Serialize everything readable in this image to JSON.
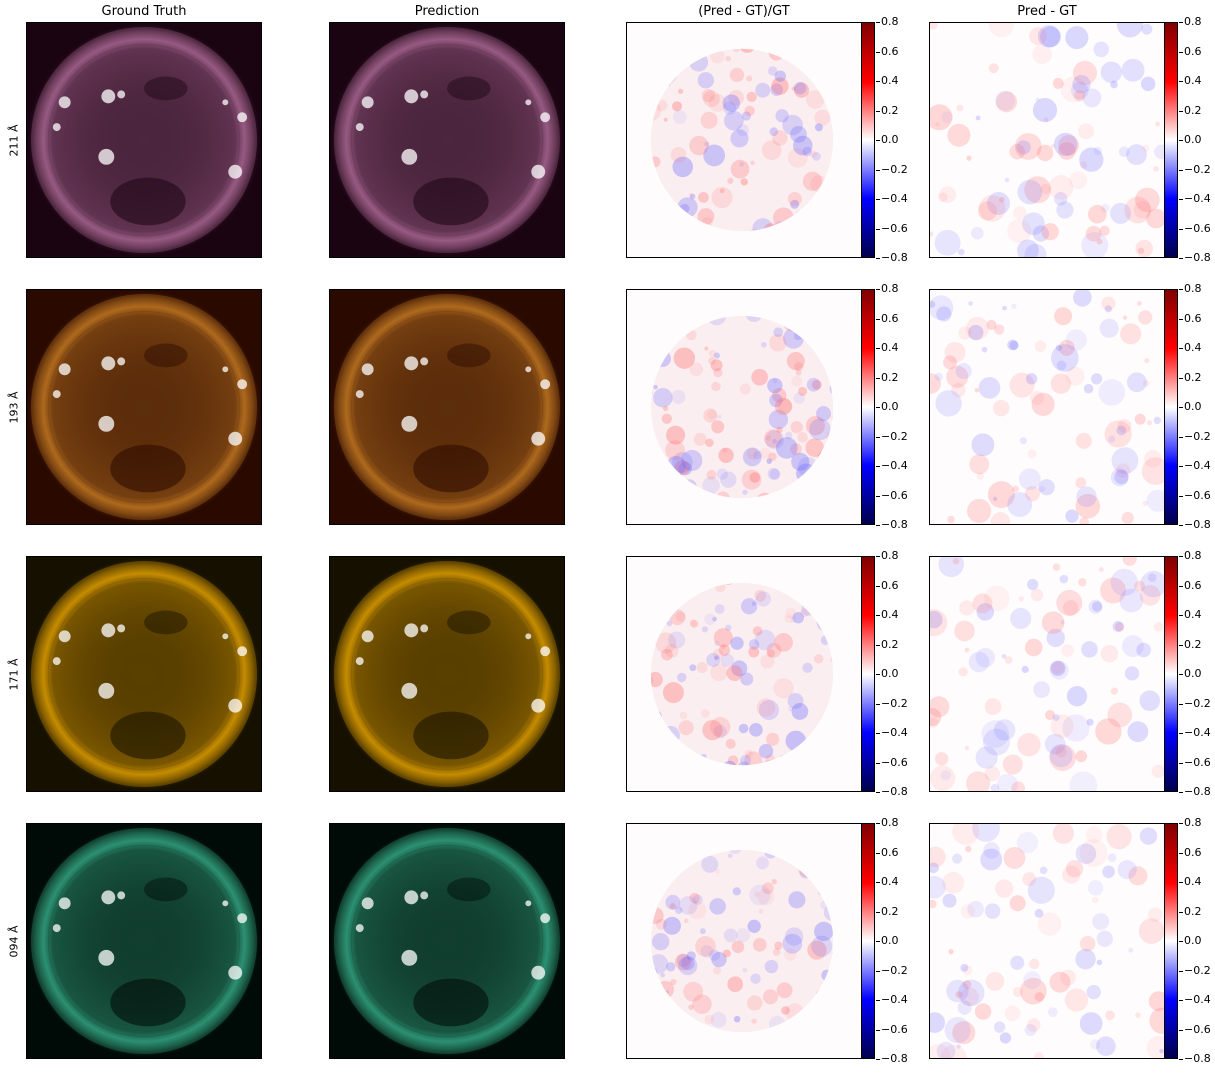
{
  "columns": [
    "Ground Truth",
    "Prediction",
    "(Pred - GT)/GT",
    "Pred - GT"
  ],
  "rows": [
    {
      "label": "211 Å",
      "colormap": "sdo-aia-211",
      "tint": "#a0608a",
      "dark": "#1b0412"
    },
    {
      "label": "193 Å",
      "colormap": "sdo-aia-193",
      "tint": "#b7701f",
      "dark": "#2a0a00"
    },
    {
      "label": "171 Å",
      "colormap": "sdo-aia-171",
      "tint": "#d29500",
      "dark": "#151000"
    },
    {
      "label": "094 Å",
      "colormap": "sdo-aia-94",
      "tint": "#2f9a78",
      "dark": "#000a06"
    }
  ],
  "colorbar": {
    "colormap": "seismic",
    "range": [
      -0.8,
      0.8
    ],
    "ticks": [
      "0.8",
      "0.6",
      "0.4",
      "0.2",
      "0.0",
      "−0.2",
      "−0.4",
      "−0.6",
      "−0.8"
    ]
  }
}
